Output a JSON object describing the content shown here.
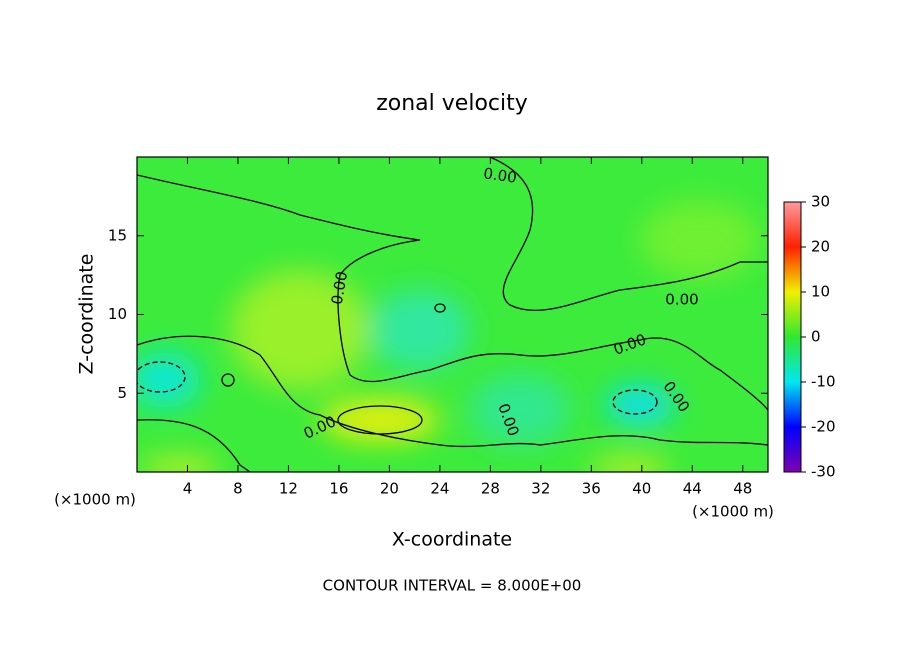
{
  "chart_data": {
    "type": "contour",
    "title": "zonal velocity",
    "xlabel": "X-coordinate",
    "ylabel": "Z-coordinate",
    "xunit": "(×1000 m)",
    "yunit": "(×1000 m)",
    "xlim": [
      0,
      50
    ],
    "xticks": [
      4,
      8,
      12,
      16,
      20,
      24,
      28,
      32,
      36,
      40,
      44,
      48
    ],
    "ylim": [
      0,
      20
    ],
    "yticks": [
      5,
      10,
      15
    ],
    "clim": [
      -30,
      30
    ],
    "cticks": [
      -30,
      -20,
      -10,
      0,
      10,
      20,
      30
    ],
    "colormap": [
      "#8000b0",
      "#0000ff",
      "#00e8f0",
      "#30e830",
      "#f0f000",
      "#ff2000",
      "#ff9a9a"
    ],
    "contour_label": "0.00",
    "footer": "CONTOUR INTERVAL = 8.000E+00"
  }
}
